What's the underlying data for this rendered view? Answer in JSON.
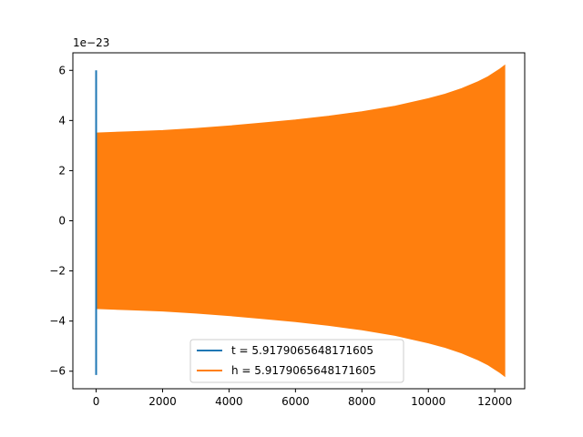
{
  "chart_data": {
    "type": "line",
    "title": "",
    "xlabel": "",
    "ylabel": "",
    "xlim": [
      -700,
      12900
    ],
    "ylim": [
      -6.7,
      6.7
    ],
    "y_scale_label": "1e−23",
    "x_ticks": [
      0,
      2000,
      4000,
      6000,
      8000,
      10000,
      12000
    ],
    "y_ticks": [
      -6,
      -4,
      -2,
      0,
      2,
      4,
      6
    ],
    "grid": false,
    "legend_position": "lower center",
    "series": [
      {
        "name": "t = 5.9179065648171605",
        "color": "#1f77b4",
        "x": [
          0,
          0
        ],
        "y": [
          6.0,
          -6.15
        ]
      },
      {
        "name": "h = 5.9179065648171605",
        "color": "#ff7f0e",
        "envelope_x": [
          0,
          1000,
          2000,
          3000,
          4000,
          5000,
          6000,
          7000,
          8000,
          9000,
          10000,
          10500,
          11000,
          11500,
          11800,
          12000,
          12150,
          12300
        ],
        "envelope_upper": [
          3.5,
          3.55,
          3.6,
          3.68,
          3.78,
          3.9,
          4.02,
          4.17,
          4.35,
          4.57,
          4.87,
          5.05,
          5.27,
          5.55,
          5.75,
          5.92,
          6.05,
          6.2
        ],
        "envelope_lower": [
          -3.5,
          -3.55,
          -3.6,
          -3.68,
          -3.78,
          -3.9,
          -4.02,
          -4.17,
          -4.35,
          -4.57,
          -4.87,
          -5.05,
          -5.27,
          -5.55,
          -5.75,
          -5.92,
          -6.05,
          -6.2
        ]
      }
    ]
  }
}
